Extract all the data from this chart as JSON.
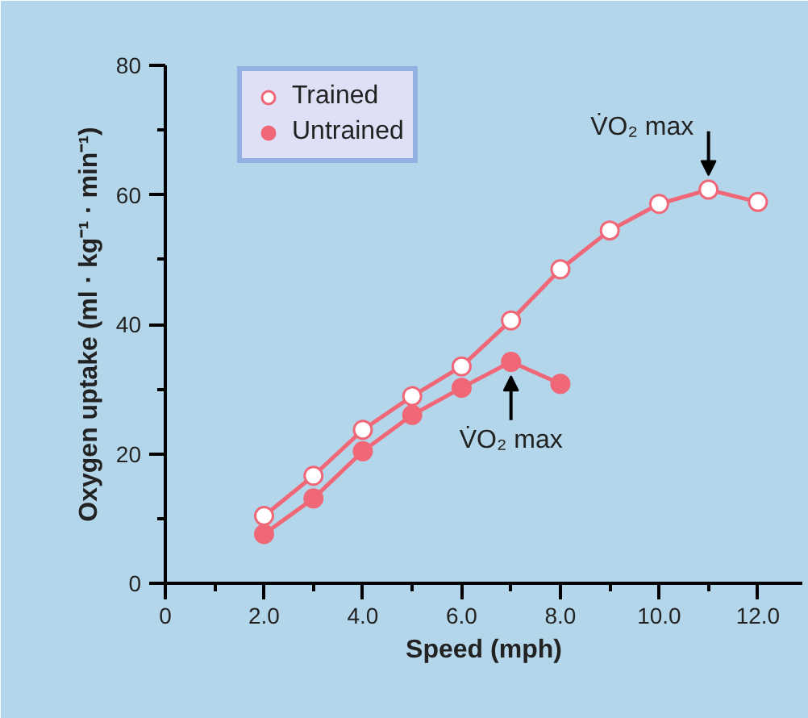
{
  "chart_data": {
    "type": "line",
    "xlabel": "Speed (mph)",
    "ylabel": "Oxygen uptake (ml · kg⁻¹ · min⁻¹)",
    "xlim": [
      0,
      12.9
    ],
    "ylim": [
      0,
      80
    ],
    "xticks": [
      0,
      {
        "value": 2,
        "label": "2.0"
      },
      {
        "value": 4,
        "label": "4.0"
      },
      {
        "value": 6,
        "label": "6.0"
      },
      {
        "value": 8,
        "label": "8.0"
      },
      {
        "value": 10,
        "label": "10.0"
      },
      {
        "value": 12,
        "label": "12.0"
      }
    ],
    "yticks": [
      0,
      20,
      40,
      60,
      80
    ],
    "series": [
      {
        "name": "Trained",
        "color": "#f06878",
        "x": [
          2,
          3,
          4,
          5,
          6,
          7,
          8,
          9,
          10,
          11,
          12
        ],
        "values": [
          10.4,
          16.6,
          23.7,
          28.9,
          33.5,
          40.6,
          48.5,
          54.5,
          58.6,
          60.8,
          58.9
        ]
      },
      {
        "name": "Untrained",
        "color": "#f06878",
        "x": [
          2,
          3,
          4,
          5,
          6,
          7,
          8
        ],
        "values": [
          7.6,
          13.1,
          20.4,
          26.0,
          30.2,
          34.2,
          30.8
        ]
      }
    ],
    "annotations": [
      {
        "text": "V̇O₂ max",
        "x": 11,
        "y": 60.8
      },
      {
        "text": "V̇O₂ max",
        "x": 7,
        "y": 34.2
      }
    ],
    "marker": "circle",
    "line_style": "solid",
    "legend": "top left",
    "grid": false
  }
}
